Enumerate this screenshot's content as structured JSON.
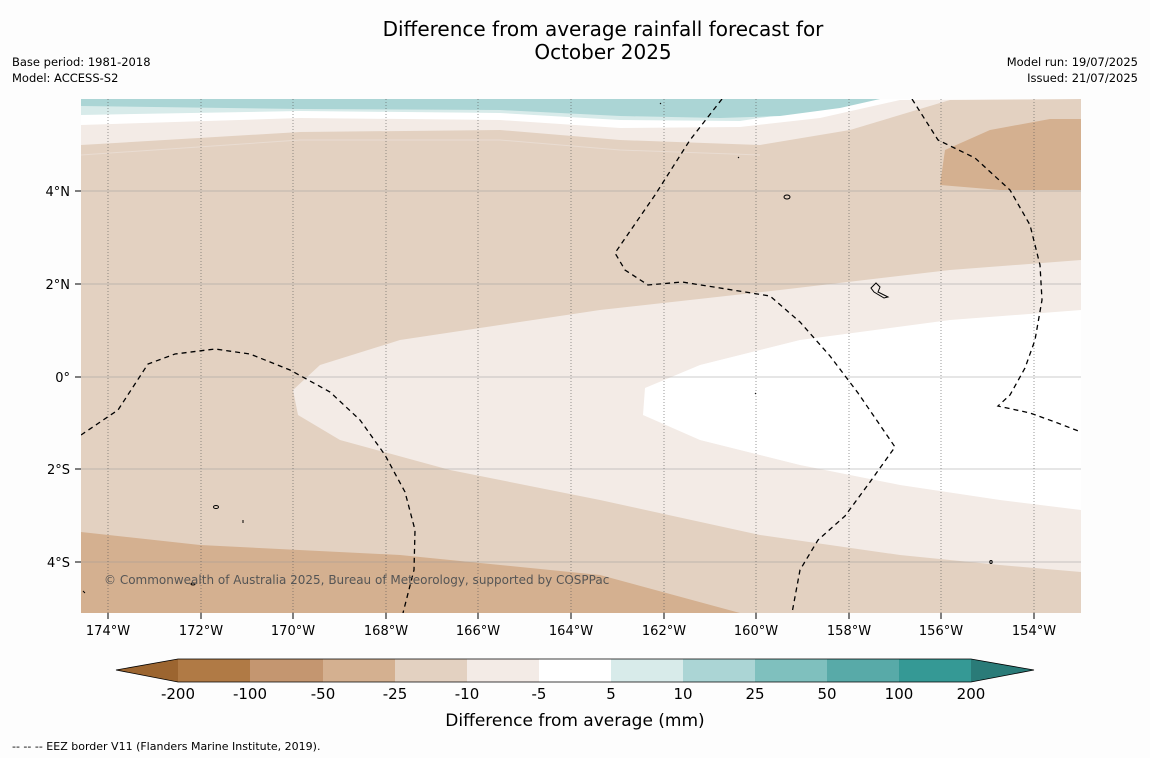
{
  "title": {
    "line1": "Difference from average rainfall forecast for",
    "line2": "October 2025"
  },
  "meta_left": {
    "base_period": "Base period: 1981-2018",
    "model": "Model: ACCESS-S2"
  },
  "meta_right": {
    "model_run": "Model run: 19/07/2025",
    "issued": "Issued: 21/07/2025"
  },
  "axes": {
    "lon_labels": [
      "174°W",
      "172°W",
      "170°W",
      "168°W",
      "166°W",
      "164°W",
      "162°W",
      "160°W",
      "158°W",
      "156°W",
      "154°W"
    ],
    "lat_labels": [
      "4°N",
      "2°N",
      "0°",
      "2°S",
      "4°S"
    ]
  },
  "copyright": "© Commonwealth of Australia 2025, Bureau of Meteorology, supported by COSPPac",
  "colorbar": {
    "title": "Difference from average (mm)",
    "ticks": [
      "-200",
      "-100",
      "-50",
      "-25",
      "-10",
      "-5",
      "5",
      "10",
      "25",
      "50",
      "100",
      "200"
    ],
    "colors": [
      "#9c6530",
      "#b07a45",
      "#c49670",
      "#d4b090",
      "#e3d1c1",
      "#f3ebe6",
      "#ffffff",
      "#d8ebea",
      "#abd5d5",
      "#7fc0be",
      "#58aaa8",
      "#359995",
      "#2a7b78"
    ]
  },
  "footer": "--  --  -- EEZ border V11 (Flanders Marine Institute, 2019)."
}
